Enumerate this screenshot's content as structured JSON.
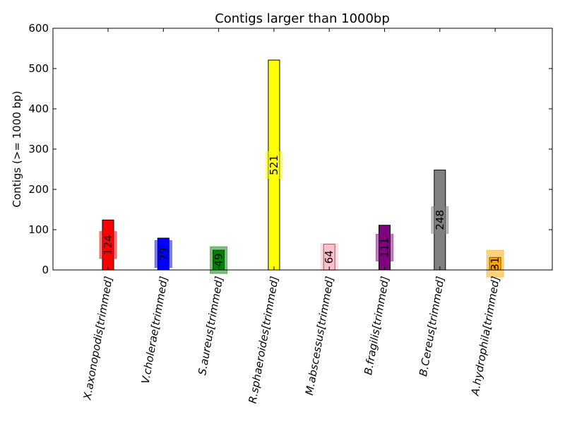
{
  "chart_data": {
    "type": "bar",
    "title": "Contigs larger than 1000bp",
    "xlabel": "",
    "ylabel": "Contigs (>= 1000 bp)",
    "ylim": [
      0,
      600
    ],
    "yticks": [
      0,
      100,
      200,
      300,
      400,
      500,
      600
    ],
    "grid": false,
    "categories": [
      "X.axonopodis[trimmed]",
      "V.cholerae[trimmed]",
      "S.aureus[trimmed]",
      "R.sphaeroides[trimmed]",
      "M.abscessus[trimmed]",
      "B.fragilis[trimmed]",
      "B.Cereus[trimmed]",
      "A.hydrophila[trimmed]"
    ],
    "values": [
      124,
      79,
      49,
      521,
      64,
      111,
      248,
      31
    ],
    "value_labels": [
      "124",
      "79",
      "49",
      "521",
      "64",
      "111",
      "248",
      "31"
    ],
    "colors": [
      "#ff0000",
      "#0000ff",
      "#008000",
      "#ffff00",
      "#ffc0cb",
      "#800080",
      "#808080",
      "#ffa500"
    ]
  }
}
